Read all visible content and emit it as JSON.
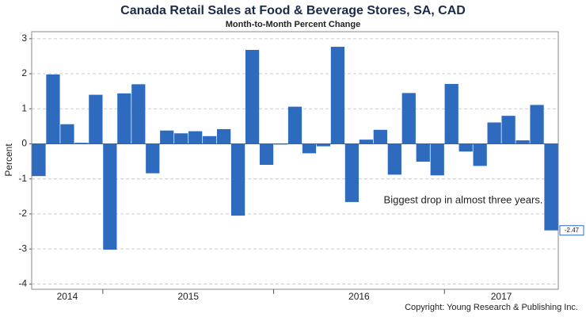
{
  "chart_data": {
    "type": "bar",
    "title": "Canada Retail Sales at Food & Beverage Stores, SA, CAD",
    "subtitle": "Month-to-Month Percent Change",
    "y_label": "Percent",
    "annotation": "Biggest drop in almost three years.",
    "copyright": "Copyright: Young Research & Publishing Inc.",
    "color": "#2e6bbf",
    "grid": true,
    "categories": [
      null,
      null,
      null,
      null,
      null,
      null,
      null,
      null,
      null,
      null,
      null,
      null,
      null,
      null,
      null,
      null,
      null,
      null,
      null,
      null,
      null,
      null,
      null,
      null,
      null,
      null,
      null,
      null,
      null,
      null,
      null,
      null,
      null,
      null,
      null,
      null,
      null
    ],
    "values": [
      -0.92,
      1.98,
      0.56,
      0.03,
      1.4,
      -3.02,
      1.44,
      1.7,
      -0.84,
      0.38,
      0.3,
      0.36,
      0.22,
      0.42,
      -2.05,
      2.68,
      -0.6,
      -0.02,
      1.06,
      -0.27,
      -0.07,
      2.77,
      -1.66,
      0.12,
      0.4,
      -0.88,
      1.45,
      -0.51,
      -0.9,
      1.71,
      -0.22,
      -0.63,
      0.61,
      0.8,
      0.1,
      1.11,
      -2.47
    ],
    "value_labels": [
      null,
      null,
      null,
      null,
      null,
      null,
      null,
      null,
      null,
      null,
      null,
      null,
      null,
      null,
      null,
      null,
      null,
      null,
      null,
      null,
      null,
      null,
      null,
      null,
      null,
      null,
      null,
      null,
      null,
      null,
      null,
      null,
      null,
      null,
      null,
      null,
      "-2.47"
    ],
    "x_groups": [
      {
        "label": "2014",
        "span": 5
      },
      {
        "label": "2015",
        "span": 12
      },
      {
        "label": "2016",
        "span": 12
      },
      {
        "label": "2017",
        "span": 8
      }
    ],
    "ylim": [
      -4.15,
      3.2
    ],
    "yticks": [
      -4,
      -3,
      -2,
      -1,
      0,
      1,
      2,
      3
    ]
  }
}
